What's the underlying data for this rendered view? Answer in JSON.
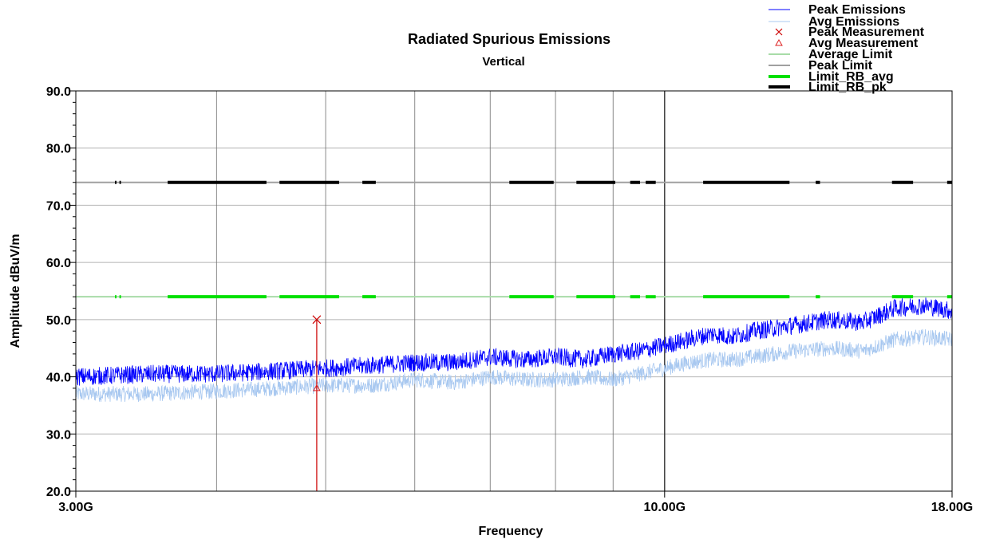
{
  "chart_data": {
    "type": "line",
    "title": "Radiated Spurious Emissions",
    "subtitle": "Vertical",
    "xlabel": "Frequency",
    "ylabel": "Amplitude dBuV/m",
    "x_scale": "log",
    "xlim": [
      3.0,
      18.0
    ],
    "ylim": [
      20,
      90
    ],
    "x_tick_labels": [
      {
        "x": 3.0,
        "label": "3.00G"
      },
      {
        "x": 10.0,
        "label": "10.00G"
      },
      {
        "x": 18.0,
        "label": "18.00G"
      }
    ],
    "y_ticks": [
      {
        "y": 20,
        "label": "20.0"
      },
      {
        "y": 30,
        "label": "30.0"
      },
      {
        "y": 40,
        "label": "40.0"
      },
      {
        "y": 50,
        "label": "50.0"
      },
      {
        "y": 60,
        "label": "60.0"
      },
      {
        "y": 70,
        "label": "70.0"
      },
      {
        "y": 80,
        "label": "80.0"
      },
      {
        "y": 90,
        "label": "90.0"
      }
    ],
    "x_gridlines": [
      4,
      5,
      6,
      7,
      8,
      9,
      10
    ],
    "grid": true,
    "legend_position": "top-right",
    "series": [
      {
        "name": "Peak Emissions",
        "color": "#0000ff",
        "style": "noise",
        "x": [
          3.0,
          3.5,
          4.0,
          4.5,
          5.0,
          5.5,
          6.0,
          6.5,
          7.0,
          7.5,
          8.0,
          8.5,
          9.0,
          9.5,
          10.0,
          10.5,
          11.0,
          11.5,
          12.0,
          13.0,
          14.0,
          15.0,
          16.0,
          17.0,
          18.0
        ],
        "y": [
          40.0,
          40.5,
          40.5,
          41.0,
          41.5,
          42.0,
          42.5,
          42.5,
          43.5,
          43.0,
          43.5,
          43.0,
          44.0,
          44.5,
          45.5,
          46.5,
          47.5,
          47.0,
          48.0,
          49.0,
          50.0,
          49.5,
          52.0,
          52.5,
          51.5
        ]
      },
      {
        "name": "Avg Emissions",
        "color": "#a8c8f0",
        "style": "noise",
        "x": [
          3.0,
          3.5,
          4.0,
          4.5,
          5.0,
          5.5,
          6.0,
          6.5,
          7.0,
          7.5,
          8.0,
          8.5,
          9.0,
          9.5,
          10.0,
          10.5,
          11.0,
          11.5,
          12.0,
          13.0,
          14.0,
          15.0,
          16.0,
          17.0,
          18.0
        ],
        "y": [
          37.0,
          37.0,
          37.5,
          38.0,
          38.5,
          38.5,
          39.5,
          39.0,
          40.0,
          39.5,
          39.5,
          40.0,
          39.5,
          40.5,
          41.5,
          42.5,
          43.0,
          43.0,
          43.5,
          44.5,
          45.0,
          44.5,
          46.5,
          47.0,
          46.5
        ]
      },
      {
        "name": "Peak Measurement",
        "color": "#cc0000",
        "marker": "x",
        "x": [
          4.91
        ],
        "y": [
          50.0
        ]
      },
      {
        "name": "Avg Measurement",
        "color": "#dd2222",
        "marker": "triangle",
        "x": [
          4.91
        ],
        "y": [
          38.0
        ]
      },
      {
        "name": "Average Limit",
        "color": "#a8dca8",
        "x": [
          3.0,
          18.0
        ],
        "y": [
          54.0,
          54.0
        ]
      },
      {
        "name": "Peak Limit",
        "color": "#a0a0a0",
        "x": [
          3.0,
          18.0
        ],
        "y": [
          74.0,
          74.0
        ]
      },
      {
        "name": "Limit_RB_avg",
        "color": "#00e000",
        "y": 54.0,
        "segments": [
          [
            3.25,
            3.26
          ],
          [
            3.28,
            3.29
          ],
          [
            3.62,
            4.43
          ],
          [
            4.55,
            5.14
          ],
          [
            5.39,
            5.54
          ],
          [
            7.28,
            7.97
          ],
          [
            8.35,
            9.04
          ],
          [
            9.32,
            9.51
          ],
          [
            9.62,
            9.82
          ],
          [
            10.82,
            12.91
          ],
          [
            13.62,
            13.74
          ],
          [
            15.92,
            16.62
          ],
          [
            17.82,
            18.0
          ]
        ]
      },
      {
        "name": "Limit_RB_pk",
        "color": "#000000",
        "y": 74.0,
        "segments": [
          [
            3.25,
            3.26
          ],
          [
            3.28,
            3.29
          ],
          [
            3.62,
            4.43
          ],
          [
            4.55,
            5.14
          ],
          [
            5.39,
            5.54
          ],
          [
            7.28,
            7.97
          ],
          [
            8.35,
            9.04
          ],
          [
            9.32,
            9.51
          ],
          [
            9.62,
            9.82
          ],
          [
            10.82,
            12.91
          ],
          [
            13.62,
            13.74
          ],
          [
            15.92,
            16.62
          ],
          [
            17.82,
            18.0
          ]
        ]
      }
    ]
  }
}
